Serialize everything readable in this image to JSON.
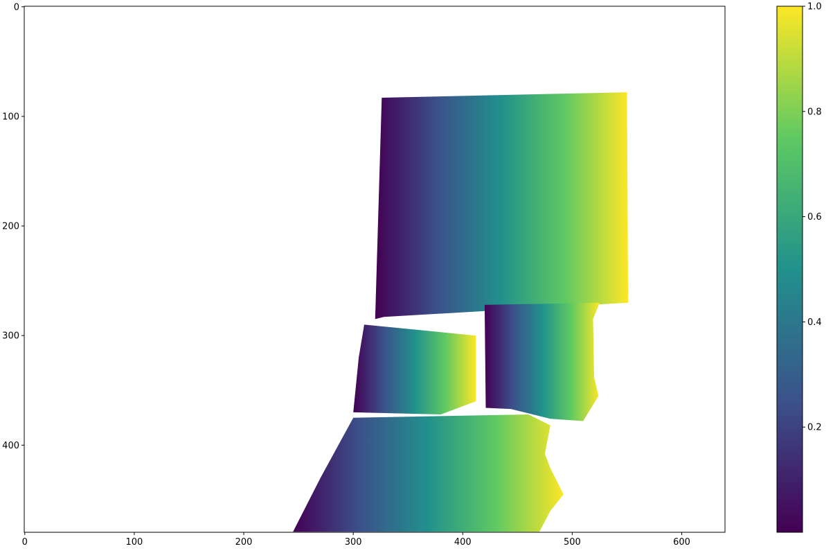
{
  "chart_data": [
    {
      "type": "heatmap",
      "title": "",
      "xlabel": "",
      "ylabel": "",
      "image_width": 640,
      "image_height": 480,
      "xlim": [
        -0.5,
        639.5
      ],
      "ylim": [
        479.5,
        -0.5
      ],
      "x_ticks": [
        0,
        100,
        200,
        300,
        400,
        500,
        600
      ],
      "y_ticks": [
        0,
        100,
        200,
        300,
        400
      ],
      "colormap": "viridis",
      "vmin": 0,
      "vmax": 1,
      "missing_color": "#ffffff",
      "value_gradient": "left-to-right",
      "valid_regions": [
        {
          "name": "background-wall",
          "polygon": [
            [
              326,
              83
            ],
            [
              550,
              78
            ],
            [
              551,
              270
            ],
            [
              328,
              283
            ],
            [
              320,
              285
            ]
          ]
        },
        {
          "name": "table-left",
          "polygon": [
            [
              310,
              290
            ],
            [
              412,
              300
            ],
            [
              412,
              360
            ],
            [
              380,
              372
            ],
            [
              300,
              370
            ],
            [
              305,
              320
            ]
          ]
        },
        {
          "name": "box-object",
          "polygon": [
            [
              420,
              272
            ],
            [
              525,
              270
            ],
            [
              519,
              285
            ],
            [
              520,
              338
            ],
            [
              524,
              355
            ],
            [
              510,
              378
            ],
            [
              480,
              376
            ],
            [
              444,
              367
            ],
            [
              421,
              366
            ]
          ]
        },
        {
          "name": "table-front",
          "polygon": [
            [
              300,
              375
            ],
            [
              460,
              372
            ],
            [
              480,
              382
            ],
            [
              475,
              408
            ],
            [
              480,
              421
            ],
            [
              492,
              445
            ],
            [
              480,
              460
            ],
            [
              470,
              479
            ],
            [
              245,
              479
            ],
            [
              270,
              430
            ]
          ]
        }
      ]
    },
    {
      "type": "colorbar",
      "colormap": "viridis",
      "range": [
        0,
        1
      ],
      "ticks": [
        0.2,
        0.4,
        0.6,
        0.8,
        1.0
      ],
      "tick_labels": [
        "0.2",
        "0.4",
        "0.6",
        "0.8",
        "1.0"
      ],
      "colors": [
        "#440154",
        "#3b528b",
        "#21918c",
        "#5ec962",
        "#fde725"
      ]
    }
  ]
}
